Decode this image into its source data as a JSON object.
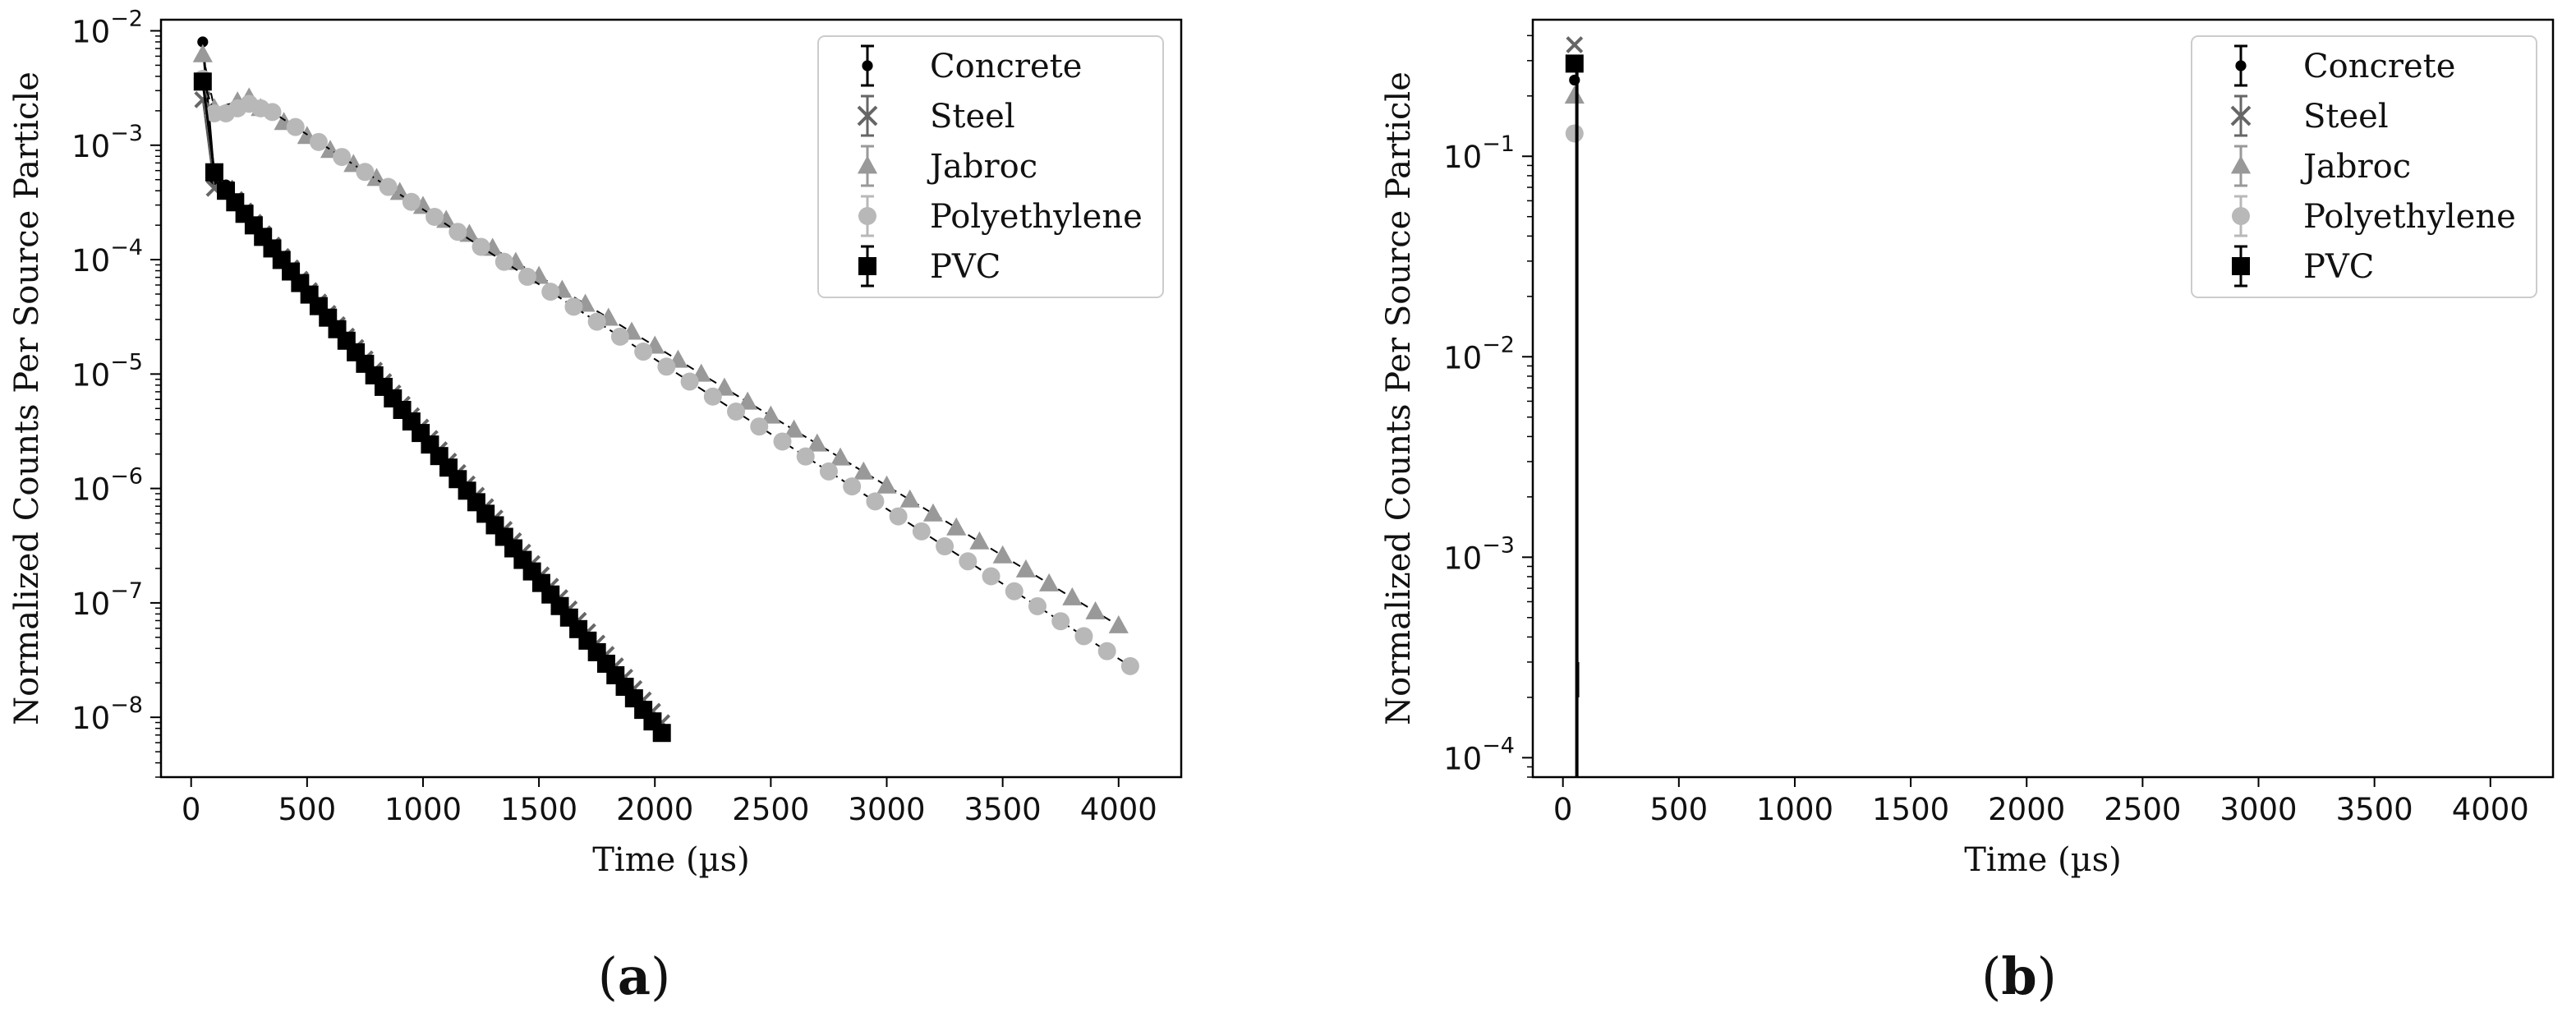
{
  "chart_data": [
    {
      "panel_label": "(a)",
      "type": "scatter",
      "xlabel": "Time (µs)",
      "ylabel": "Normalized Counts Per Source Particle",
      "xlim": [
        -130,
        4270
      ],
      "ylim": [
        3e-09,
        0.0125
      ],
      "yscale": "log",
      "xticks": [
        0,
        500,
        1000,
        1500,
        2000,
        2500,
        3000,
        3500,
        4000
      ],
      "xtick_labels": [
        "0",
        "500",
        "1000",
        "1500",
        "2000",
        "2500",
        "3000",
        "3500",
        "4000"
      ],
      "yticks": [
        1e-08,
        1e-07,
        1e-06,
        1e-05,
        0.0001,
        0.001,
        0.01
      ],
      "ytick_labels": [
        [
          "10",
          "−8"
        ],
        [
          "10",
          "−7"
        ],
        [
          "10",
          "−6"
        ],
        [
          "10",
          "−5"
        ],
        [
          "10",
          "−4"
        ],
        [
          "10",
          "−3"
        ],
        [
          "10",
          "−2"
        ]
      ],
      "grid": false,
      "legend": "top-right",
      "series": [
        {
          "name": "Concrete",
          "marker": "dot",
          "color": "#000000",
          "points": [
            [
              50,
              0.008
            ],
            [
              100,
              0.0005
            ],
            [
              150,
              0.00045
            ]
          ]
        },
        {
          "name": "Steel",
          "marker": "x",
          "color": "#666666",
          "decay": {
            "x0": 150,
            "y0": 0.00042,
            "x1": 2050,
            "y1": 8e-09,
            "step": 40
          },
          "points": [
            [
              50,
              0.0025
            ],
            [
              100,
              0.00042
            ]
          ]
        },
        {
          "name": "Jabroc",
          "marker": "triangle",
          "color": "#999999",
          "decay": {
            "x0": 300,
            "y0": 0.0021,
            "x1": 4050,
            "y1": 5.5e-08,
            "step": 100
          },
          "points": [
            [
              50,
              0.0062
            ],
            [
              100,
              0.0021
            ],
            [
              200,
              0.0024
            ],
            [
              250,
              0.0026
            ]
          ]
        },
        {
          "name": "Polyethylene",
          "marker": "circle",
          "color": "#b8b8b8",
          "decay": {
            "x0": 350,
            "y0": 0.00195,
            "x1": 4050,
            "y1": 2.8e-08,
            "step": 100
          },
          "points": [
            [
              50,
              0.0038
            ],
            [
              100,
              0.0019
            ],
            [
              150,
              0.0019
            ],
            [
              200,
              0.0021
            ],
            [
              250,
              0.0023
            ],
            [
              300,
              0.0021
            ]
          ]
        },
        {
          "name": "PVC",
          "marker": "square",
          "color": "#000000",
          "decay": {
            "x0": 150,
            "y0": 0.0004,
            "x1": 2050,
            "y1": 6.5e-09,
            "step": 40
          },
          "points": [
            [
              50,
              0.0036
            ],
            [
              100,
              0.00058
            ]
          ]
        }
      ]
    },
    {
      "panel_label": "(b)",
      "type": "scatter",
      "xlabel": "Time (µs)",
      "ylabel": "Normalized Counts Per Source Particle",
      "xlim": [
        -130,
        4270
      ],
      "ylim": [
        8e-05,
        0.48
      ],
      "yscale": "log",
      "xticks": [
        0,
        500,
        1000,
        1500,
        2000,
        2500,
        3000,
        3500,
        4000
      ],
      "xtick_labels": [
        "0",
        "500",
        "1000",
        "1500",
        "2000",
        "2500",
        "3000",
        "3500",
        "4000"
      ],
      "yticks": [
        0.0001,
        0.001,
        0.01,
        0.1
      ],
      "ytick_labels": [
        [
          "10",
          "−4"
        ],
        [
          "10",
          "−3"
        ],
        [
          "10",
          "−2"
        ],
        [
          "10",
          "−1"
        ]
      ],
      "grid": false,
      "legend": "top-right",
      "series": [
        {
          "name": "Concrete",
          "marker": "dot",
          "color": "#000000",
          "points": [
            [
              50,
              0.24
            ]
          ]
        },
        {
          "name": "Steel",
          "marker": "x",
          "color": "#666666",
          "points": [
            [
              50,
              0.36
            ]
          ]
        },
        {
          "name": "Jabroc",
          "marker": "triangle",
          "color": "#999999",
          "points": [
            [
              50,
              0.2
            ]
          ]
        },
        {
          "name": "Polyethylene",
          "marker": "circle",
          "color": "#b8b8b8",
          "points": [
            [
              50,
              0.13
            ]
          ]
        },
        {
          "name": "PVC",
          "marker": "square",
          "color": "#000000",
          "points": [
            [
              50,
              0.29
            ]
          ]
        }
      ],
      "drop_line": {
        "x": 60,
        "from": 0.29,
        "to": 8e-05
      },
      "drop_tick": {
        "x": 65,
        "from": 0.0003,
        "to": 0.0002
      }
    }
  ]
}
